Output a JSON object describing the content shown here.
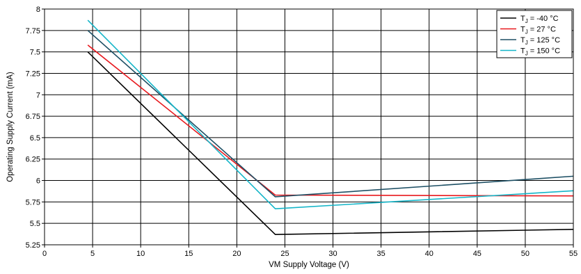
{
  "chart_data": {
    "type": "line",
    "xlabel": "VM Supply Voltage (V)",
    "ylabel": "Operating Supply Current (mA)",
    "xlim": [
      0,
      55
    ],
    "ylim": [
      5.25,
      8
    ],
    "xticks": [
      0,
      5,
      10,
      15,
      20,
      25,
      30,
      35,
      40,
      45,
      50,
      55
    ],
    "yticks": [
      5.25,
      5.5,
      5.75,
      6,
      6.25,
      6.5,
      6.75,
      7,
      7.25,
      7.5,
      7.75,
      8
    ],
    "xtick_labels": [
      "0",
      "5",
      "10",
      "15",
      "20",
      "25",
      "30",
      "35",
      "40",
      "45",
      "50",
      "55"
    ],
    "ytick_labels": [
      "5.25",
      "5.5",
      "5.75",
      "6",
      "6.25",
      "6.5",
      "6.75",
      "7",
      "7.25",
      "7.5",
      "7.75",
      "8"
    ],
    "grid": true,
    "legend_position": "top-right",
    "series": [
      {
        "name_main": "T",
        "name_sub": "J",
        "name_rest": " = -40 °C",
        "color": "#000000",
        "x": [
          4.5,
          24,
          55
        ],
        "y": [
          7.5,
          5.37,
          5.43
        ]
      },
      {
        "name_main": "T",
        "name_sub": "J",
        "name_rest": " = 27 °C",
        "color": "#e8191e",
        "x": [
          4.5,
          24,
          55
        ],
        "y": [
          7.58,
          5.83,
          5.82
        ]
      },
      {
        "name_main": "T",
        "name_sub": "J",
        "name_rest": " = 125 °C",
        "color": "#1d4f64",
        "x": [
          4.5,
          24,
          55
        ],
        "y": [
          7.75,
          5.81,
          6.05
        ]
      },
      {
        "name_main": "T",
        "name_sub": "J",
        "name_rest": " = 150 °C",
        "color": "#14b5c8",
        "x": [
          4.5,
          24,
          55
        ],
        "y": [
          7.87,
          5.67,
          5.88
        ]
      }
    ]
  }
}
